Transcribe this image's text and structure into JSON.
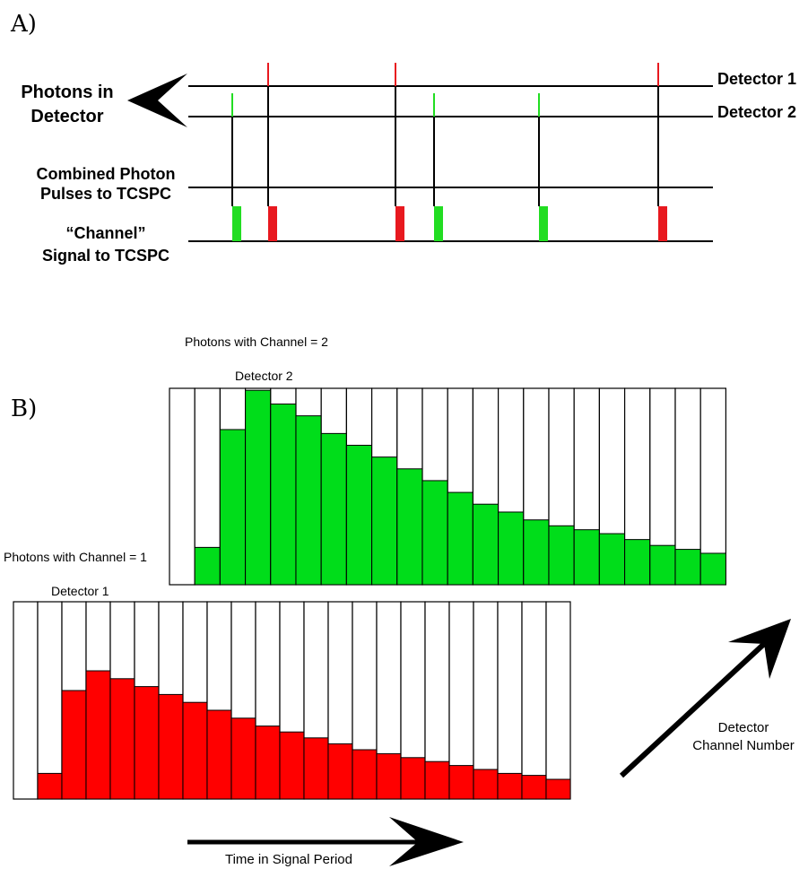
{
  "panel_a": {
    "label": "A)",
    "photons_in_detector_line1": "Photons in",
    "photons_in_detector_line2": "Detector",
    "detector1_label": "Detector 1",
    "detector2_label": "Detector 2",
    "combined_line1": "Combined Photon",
    "combined_line2": "Pulses to TCSPC",
    "channel_line1": "“Channel”",
    "channel_line2": "Signal to TCSPC",
    "detector1_color": "#e8191f",
    "detector2_color": "#22dd22"
  },
  "panel_b": {
    "label": "B)",
    "channel2_label": "Photons with Channel = 2",
    "detector2_label": "Detector 2",
    "channel1_label": "Photons with Channel = 1",
    "detector1_label": "Detector 1",
    "channel_axis_line1": "Detector",
    "channel_axis_line2": "Channel Number",
    "time_axis_label": "Time in Signal Period",
    "detector1_color": "#ff0000",
    "detector2_color": "#00dd1a"
  },
  "chart_data": [
    {
      "type": "bar",
      "name": "Detector 2",
      "values": [
        0,
        19,
        79,
        99,
        92,
        86,
        77,
        71,
        65,
        59,
        53,
        47,
        41,
        37,
        33,
        30,
        28,
        26,
        23,
        20,
        18,
        16
      ],
      "ylim": [
        0,
        100
      ]
    },
    {
      "type": "bar",
      "name": "Detector 1",
      "values": [
        0,
        13,
        55,
        65,
        61,
        57,
        53,
        49,
        45,
        41,
        37,
        34,
        31,
        28,
        25,
        23,
        21,
        19,
        17,
        15,
        13,
        12,
        10
      ],
      "ylim": [
        0,
        100
      ]
    }
  ]
}
